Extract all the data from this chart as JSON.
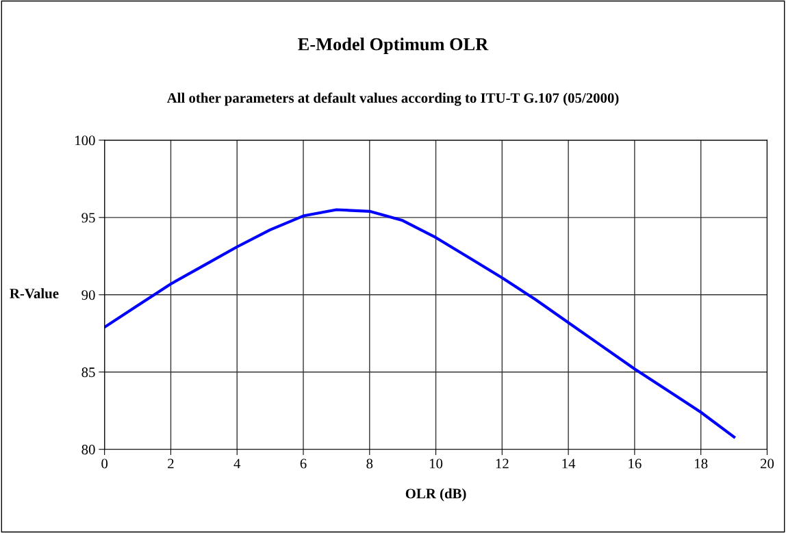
{
  "chart_data": {
    "type": "line",
    "title": "E-Model Optimum OLR",
    "subtitle": "All other parameters at default values according to ITU-T G.107 (05/2000)",
    "xlabel": "OLR (dB)",
    "ylabel": "R-Value",
    "x": [
      0,
      1,
      2,
      3,
      4,
      5,
      6,
      7,
      8,
      9,
      10,
      11,
      12,
      13,
      14,
      15,
      16,
      17,
      18,
      19
    ],
    "series": [
      {
        "color": "#0000ff",
        "values": [
          87.9,
          89.3,
          90.7,
          91.9,
          93.1,
          94.2,
          95.1,
          95.5,
          95.4,
          94.8,
          93.7,
          92.4,
          91.1,
          89.7,
          88.2,
          86.7,
          85.2,
          83.8,
          82.4,
          80.8
        ]
      }
    ],
    "xlim": [
      0,
      20
    ],
    "xticks": [
      0,
      2,
      4,
      6,
      8,
      10,
      12,
      14,
      16,
      18,
      20
    ],
    "ylim": [
      80,
      100
    ],
    "yticks": [
      80,
      85,
      90,
      95,
      100
    ],
    "grid": true,
    "marker": "none",
    "line_style": "solid"
  }
}
